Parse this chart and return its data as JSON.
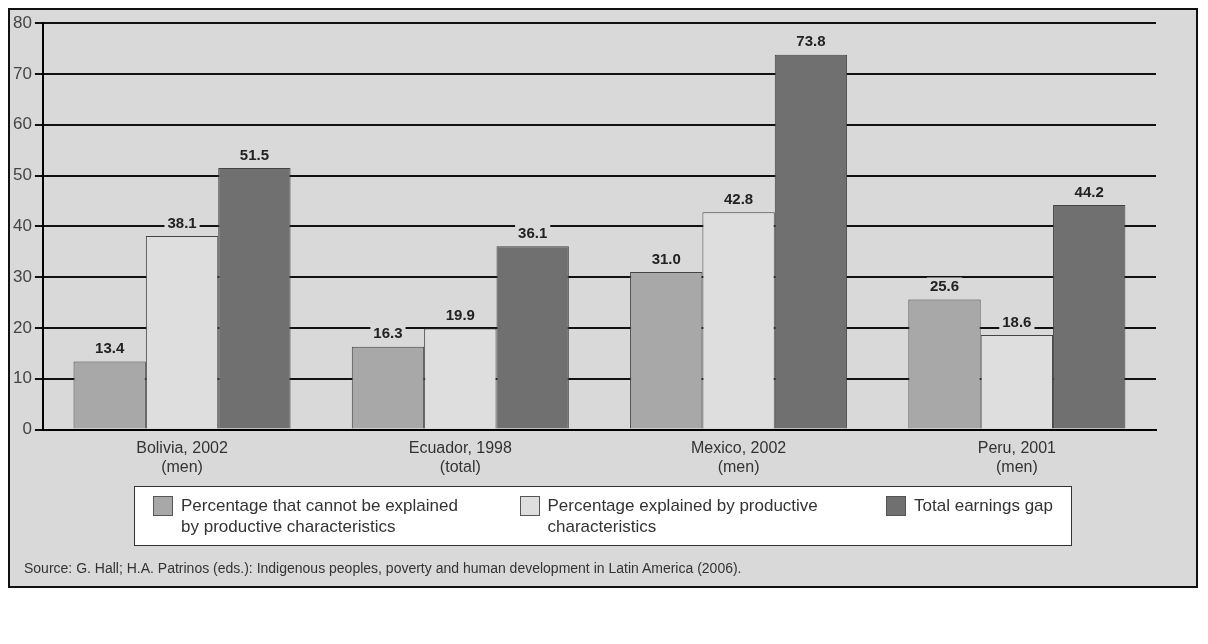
{
  "chart_data": {
    "type": "bar",
    "categories": [
      "Bolivia, 2002\n(men)",
      "Ecuador, 1998\n(total)",
      "Mexico, 2002\n(men)",
      "Peru, 2001\n(men)"
    ],
    "series": [
      {
        "name": "Percentage that cannot be explained by productive characteristics",
        "color": "#a8a8a8",
        "values": [
          13.4,
          16.3,
          31.0,
          25.6
        ],
        "value_labels": [
          "13.4",
          "16.3",
          "31.0",
          "25.6"
        ]
      },
      {
        "name": "Percentage explained by productive characteristics",
        "color": "#dedede",
        "values": [
          38.1,
          19.9,
          42.8,
          18.6
        ],
        "value_labels": [
          "38.1",
          "19.9",
          "42.8",
          "18.6"
        ]
      },
      {
        "name": "Total earnings gap",
        "color": "#707070",
        "values": [
          51.5,
          36.1,
          73.8,
          44.2
        ],
        "value_labels": [
          "51.5",
          "36.1",
          "73.8",
          "44.2"
        ]
      }
    ],
    "ylim": [
      0,
      80
    ],
    "yticks": [
      0,
      10,
      20,
      30,
      40,
      50,
      60,
      70,
      80
    ],
    "grid": "y",
    "legend": "bottom",
    "annotations": [
      "Source: G. Hall; H.A. Patrinos (eds.): Indigenous peoples, poverty and human development in Latin America (2006)."
    ]
  }
}
